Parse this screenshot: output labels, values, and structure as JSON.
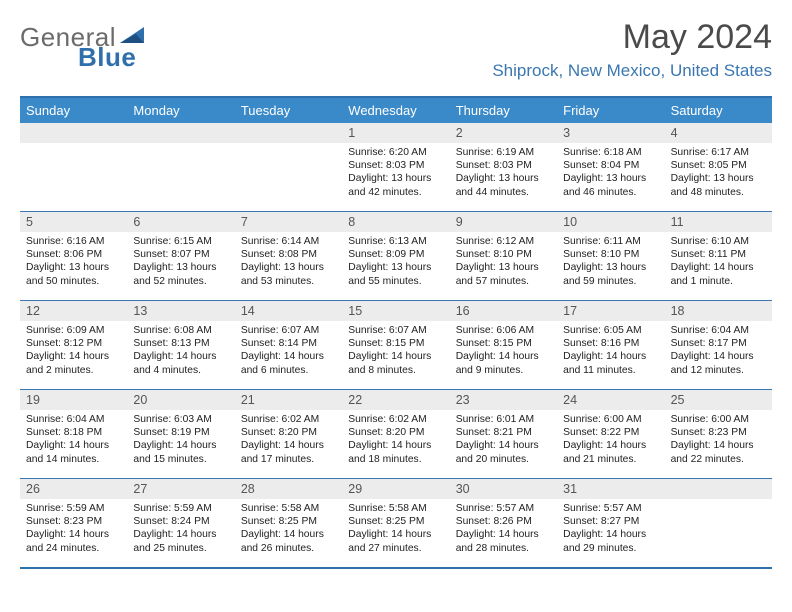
{
  "brand": {
    "part1": "General",
    "part2": "Blue"
  },
  "title": "May 2024",
  "location": "Shiprock, New Mexico, United States",
  "colors": {
    "header_bar": "#3a8ac9",
    "rule": "#2f6fab",
    "accent_text": "#3a77b0",
    "daynum_bg": "#ececec"
  },
  "weekdays": [
    "Sunday",
    "Monday",
    "Tuesday",
    "Wednesday",
    "Thursday",
    "Friday",
    "Saturday"
  ],
  "weeks": [
    [
      {
        "blank": true
      },
      {
        "blank": true
      },
      {
        "blank": true
      },
      {
        "day": "1",
        "sunrise": "Sunrise: 6:20 AM",
        "sunset": "Sunset: 8:03 PM",
        "daylight": "Daylight: 13 hours and 42 minutes."
      },
      {
        "day": "2",
        "sunrise": "Sunrise: 6:19 AM",
        "sunset": "Sunset: 8:03 PM",
        "daylight": "Daylight: 13 hours and 44 minutes."
      },
      {
        "day": "3",
        "sunrise": "Sunrise: 6:18 AM",
        "sunset": "Sunset: 8:04 PM",
        "daylight": "Daylight: 13 hours and 46 minutes."
      },
      {
        "day": "4",
        "sunrise": "Sunrise: 6:17 AM",
        "sunset": "Sunset: 8:05 PM",
        "daylight": "Daylight: 13 hours and 48 minutes."
      }
    ],
    [
      {
        "day": "5",
        "sunrise": "Sunrise: 6:16 AM",
        "sunset": "Sunset: 8:06 PM",
        "daylight": "Daylight: 13 hours and 50 minutes."
      },
      {
        "day": "6",
        "sunrise": "Sunrise: 6:15 AM",
        "sunset": "Sunset: 8:07 PM",
        "daylight": "Daylight: 13 hours and 52 minutes."
      },
      {
        "day": "7",
        "sunrise": "Sunrise: 6:14 AM",
        "sunset": "Sunset: 8:08 PM",
        "daylight": "Daylight: 13 hours and 53 minutes."
      },
      {
        "day": "8",
        "sunrise": "Sunrise: 6:13 AM",
        "sunset": "Sunset: 8:09 PM",
        "daylight": "Daylight: 13 hours and 55 minutes."
      },
      {
        "day": "9",
        "sunrise": "Sunrise: 6:12 AM",
        "sunset": "Sunset: 8:10 PM",
        "daylight": "Daylight: 13 hours and 57 minutes."
      },
      {
        "day": "10",
        "sunrise": "Sunrise: 6:11 AM",
        "sunset": "Sunset: 8:10 PM",
        "daylight": "Daylight: 13 hours and 59 minutes."
      },
      {
        "day": "11",
        "sunrise": "Sunrise: 6:10 AM",
        "sunset": "Sunset: 8:11 PM",
        "daylight": "Daylight: 14 hours and 1 minute."
      }
    ],
    [
      {
        "day": "12",
        "sunrise": "Sunrise: 6:09 AM",
        "sunset": "Sunset: 8:12 PM",
        "daylight": "Daylight: 14 hours and 2 minutes."
      },
      {
        "day": "13",
        "sunrise": "Sunrise: 6:08 AM",
        "sunset": "Sunset: 8:13 PM",
        "daylight": "Daylight: 14 hours and 4 minutes."
      },
      {
        "day": "14",
        "sunrise": "Sunrise: 6:07 AM",
        "sunset": "Sunset: 8:14 PM",
        "daylight": "Daylight: 14 hours and 6 minutes."
      },
      {
        "day": "15",
        "sunrise": "Sunrise: 6:07 AM",
        "sunset": "Sunset: 8:15 PM",
        "daylight": "Daylight: 14 hours and 8 minutes."
      },
      {
        "day": "16",
        "sunrise": "Sunrise: 6:06 AM",
        "sunset": "Sunset: 8:15 PM",
        "daylight": "Daylight: 14 hours and 9 minutes."
      },
      {
        "day": "17",
        "sunrise": "Sunrise: 6:05 AM",
        "sunset": "Sunset: 8:16 PM",
        "daylight": "Daylight: 14 hours and 11 minutes."
      },
      {
        "day": "18",
        "sunrise": "Sunrise: 6:04 AM",
        "sunset": "Sunset: 8:17 PM",
        "daylight": "Daylight: 14 hours and 12 minutes."
      }
    ],
    [
      {
        "day": "19",
        "sunrise": "Sunrise: 6:04 AM",
        "sunset": "Sunset: 8:18 PM",
        "daylight": "Daylight: 14 hours and 14 minutes."
      },
      {
        "day": "20",
        "sunrise": "Sunrise: 6:03 AM",
        "sunset": "Sunset: 8:19 PM",
        "daylight": "Daylight: 14 hours and 15 minutes."
      },
      {
        "day": "21",
        "sunrise": "Sunrise: 6:02 AM",
        "sunset": "Sunset: 8:20 PM",
        "daylight": "Daylight: 14 hours and 17 minutes."
      },
      {
        "day": "22",
        "sunrise": "Sunrise: 6:02 AM",
        "sunset": "Sunset: 8:20 PM",
        "daylight": "Daylight: 14 hours and 18 minutes."
      },
      {
        "day": "23",
        "sunrise": "Sunrise: 6:01 AM",
        "sunset": "Sunset: 8:21 PM",
        "daylight": "Daylight: 14 hours and 20 minutes."
      },
      {
        "day": "24",
        "sunrise": "Sunrise: 6:00 AM",
        "sunset": "Sunset: 8:22 PM",
        "daylight": "Daylight: 14 hours and 21 minutes."
      },
      {
        "day": "25",
        "sunrise": "Sunrise: 6:00 AM",
        "sunset": "Sunset: 8:23 PM",
        "daylight": "Daylight: 14 hours and 22 minutes."
      }
    ],
    [
      {
        "day": "26",
        "sunrise": "Sunrise: 5:59 AM",
        "sunset": "Sunset: 8:23 PM",
        "daylight": "Daylight: 14 hours and 24 minutes."
      },
      {
        "day": "27",
        "sunrise": "Sunrise: 5:59 AM",
        "sunset": "Sunset: 8:24 PM",
        "daylight": "Daylight: 14 hours and 25 minutes."
      },
      {
        "day": "28",
        "sunrise": "Sunrise: 5:58 AM",
        "sunset": "Sunset: 8:25 PM",
        "daylight": "Daylight: 14 hours and 26 minutes."
      },
      {
        "day": "29",
        "sunrise": "Sunrise: 5:58 AM",
        "sunset": "Sunset: 8:25 PM",
        "daylight": "Daylight: 14 hours and 27 minutes."
      },
      {
        "day": "30",
        "sunrise": "Sunrise: 5:57 AM",
        "sunset": "Sunset: 8:26 PM",
        "daylight": "Daylight: 14 hours and 28 minutes."
      },
      {
        "day": "31",
        "sunrise": "Sunrise: 5:57 AM",
        "sunset": "Sunset: 8:27 PM",
        "daylight": "Daylight: 14 hours and 29 minutes."
      },
      {
        "blank": true
      }
    ]
  ]
}
